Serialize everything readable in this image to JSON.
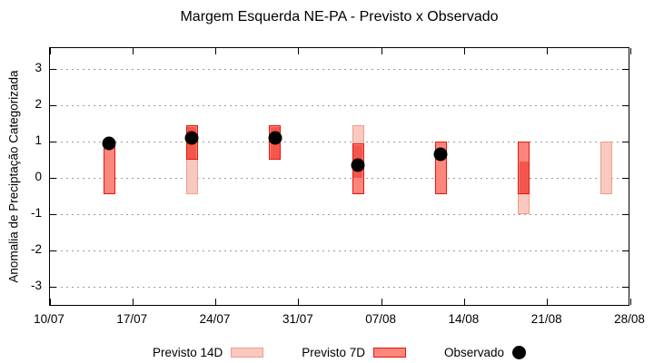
{
  "chart_data": {
    "type": "bar",
    "title": "Margem Esquerda NE-PA - Previsto x Observado",
    "ylabel": "Anomalia de Preciptação Categorizada",
    "xlabel": "",
    "ylim": [
      -3.5,
      3.5
    ],
    "yticks": [
      3,
      2,
      1,
      0,
      -1,
      -2,
      -3
    ],
    "xtick_labels": [
      "10/07",
      "17/07",
      "24/07",
      "31/07",
      "07/08",
      "14/08",
      "21/08",
      "28/08"
    ],
    "x_axis_span_days": 49,
    "grid": "horizontal-dotted",
    "legend_position": "bottom-center",
    "legend": [
      {
        "label": "Previsto 14D",
        "swatch": "light-pink-box"
      },
      {
        "label": "Previsto 7D",
        "swatch": "red-box"
      },
      {
        "label": "Observado",
        "swatch": "black-dot"
      }
    ],
    "colors": {
      "previsto_14d_fill": "#f9c8bf",
      "previsto_14d_border": "#ef9c8d",
      "previsto_7d_fill": "#fb867c",
      "previsto_7d_border": "#e8150d",
      "overlap_fill": "#f4564c",
      "observado": "#000000",
      "grid": "#9c9c9c",
      "frame": "#000000"
    },
    "bars": [
      {
        "date": "15/07",
        "day": 5,
        "previsto_14d": null,
        "previsto_7d": [
          -0.45,
          0.95
        ],
        "observado": 0.95
      },
      {
        "date": "22/07",
        "day": 12,
        "previsto_14d": [
          -0.45,
          1.45
        ],
        "previsto_7d": [
          0.5,
          1.45
        ],
        "observado": 1.1
      },
      {
        "date": "29/07",
        "day": 19,
        "previsto_14d": [
          0.5,
          1.45
        ],
        "previsto_7d": [
          0.5,
          1.45
        ],
        "observado": 1.1
      },
      {
        "date": "05/08",
        "day": 26,
        "previsto_14d": [
          0.0,
          1.45
        ],
        "previsto_7d": [
          -0.45,
          0.95
        ],
        "observado": 0.35
      },
      {
        "date": "12/08",
        "day": 33,
        "previsto_14d": null,
        "previsto_7d": [
          -0.45,
          1.0
        ],
        "observado": 0.65
      },
      {
        "date": "19/08",
        "day": 40,
        "previsto_14d": [
          -1.0,
          0.45
        ],
        "previsto_7d": [
          -0.45,
          1.0
        ],
        "observado": null
      },
      {
        "date": "26/08",
        "day": 47,
        "previsto_14d": [
          -0.45,
          1.0
        ],
        "previsto_7d": null,
        "observado": null
      }
    ]
  }
}
